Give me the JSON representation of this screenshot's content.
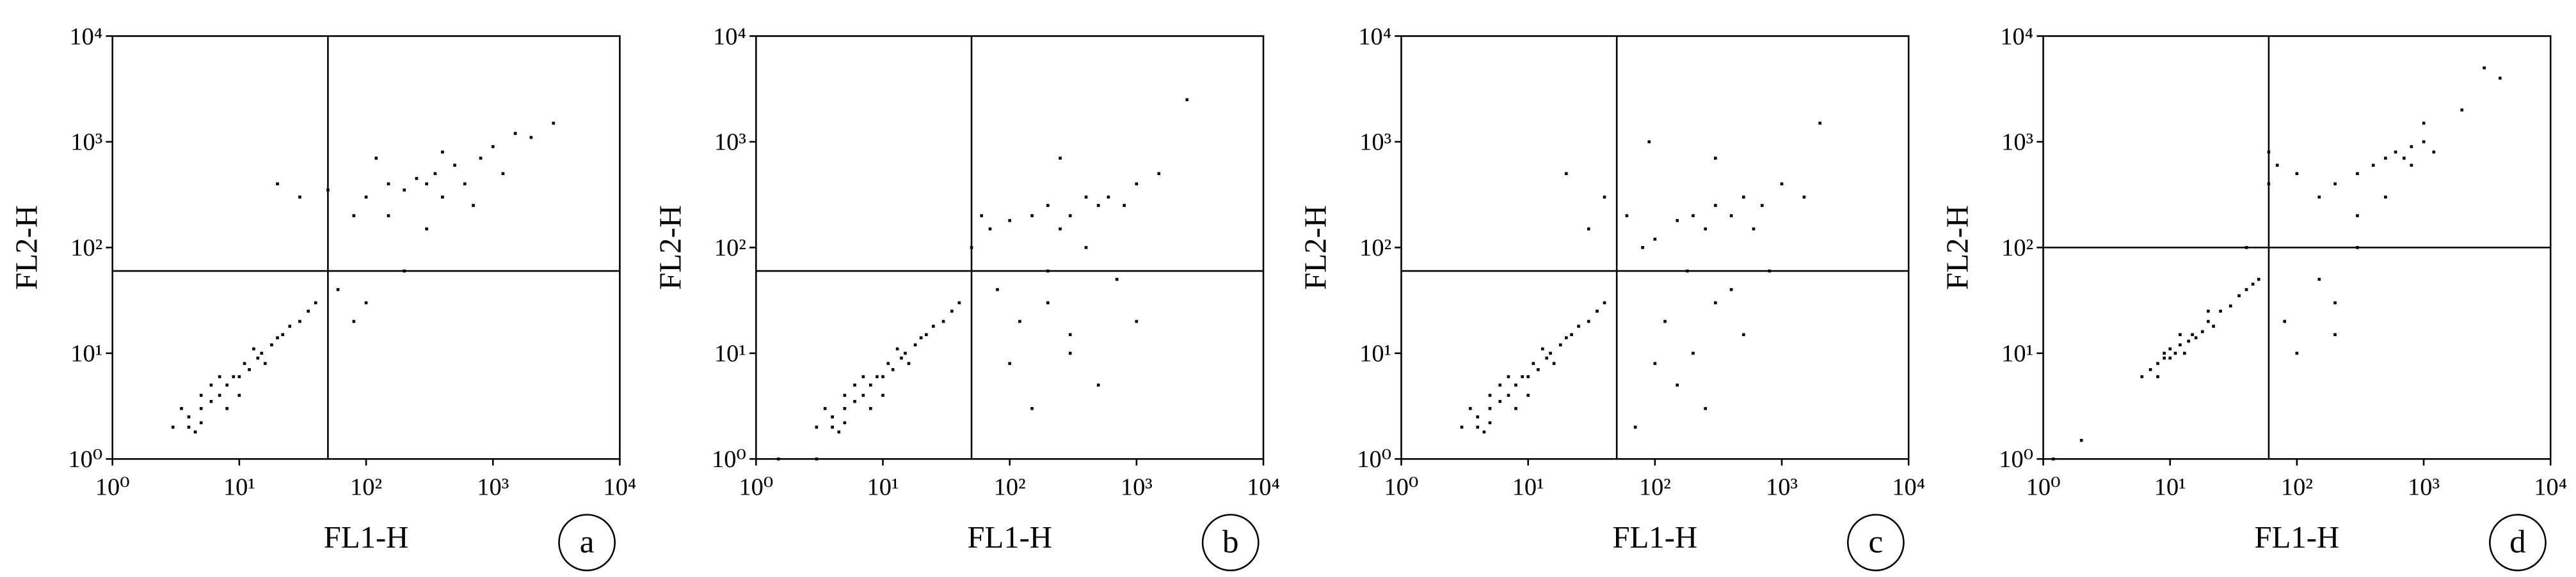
{
  "chart_data": [
    {
      "type": "scatter",
      "xlabel": "FL1-H",
      "ylabel": "FL2-H",
      "panel_label": "a",
      "color": "#000000",
      "xscale": "log",
      "yscale": "log",
      "xlim": [
        1,
        10000
      ],
      "ylim": [
        1,
        10000
      ],
      "xticks": [
        {
          "value": 1,
          "label": "10⁰"
        },
        {
          "value": 10,
          "label": "10¹"
        },
        {
          "value": 100,
          "label": "10²"
        },
        {
          "value": 1000,
          "label": "10³"
        },
        {
          "value": 10000,
          "label": "10⁴"
        }
      ],
      "yticks": [
        {
          "value": 1,
          "label": "10⁰"
        },
        {
          "value": 10,
          "label": "10¹"
        },
        {
          "value": 100,
          "label": "10²"
        },
        {
          "value": 1000,
          "label": "10³"
        },
        {
          "value": 10000,
          "label": "10⁴"
        }
      ],
      "quadrant": {
        "x": 50,
        "y": 60
      },
      "x": [
        3,
        4,
        5,
        4,
        6,
        5,
        7,
        8,
        6,
        9,
        10,
        11,
        12,
        14,
        15,
        18,
        20,
        22,
        25,
        30,
        35,
        40,
        8,
        3.5,
        5,
        10,
        13,
        16,
        7,
        4.5,
        150,
        200,
        250,
        300,
        350,
        400,
        500,
        600,
        800,
        1000,
        1500,
        2000,
        100,
        80,
        50,
        30,
        20,
        700,
        1200,
        300,
        150,
        120,
        400,
        3000,
        60,
        80,
        200,
        100
      ],
      "y": [
        2,
        2.5,
        3,
        2,
        3.5,
        4,
        4,
        5,
        5,
        6,
        6,
        8,
        7,
        9,
        10,
        12,
        14,
        15,
        18,
        20,
        25,
        30,
        3,
        3,
        2.2,
        4,
        11,
        8,
        6,
        1.8,
        400,
        350,
        450,
        400,
        500,
        300,
        600,
        400,
        700,
        900,
        1200,
        1100,
        300,
        200,
        350,
        300,
        400,
        250,
        500,
        150,
        200,
        700,
        800,
        1500,
        40,
        20,
        60,
        30
      ]
    },
    {
      "type": "scatter",
      "xlabel": "FL1-H",
      "ylabel": "FL2-H",
      "panel_label": "b",
      "color": "#000000",
      "xscale": "log",
      "yscale": "log",
      "xlim": [
        1,
        10000
      ],
      "ylim": [
        1,
        10000
      ],
      "xticks": [
        {
          "value": 1,
          "label": "10⁰"
        },
        {
          "value": 10,
          "label": "10¹"
        },
        {
          "value": 100,
          "label": "10²"
        },
        {
          "value": 1000,
          "label": "10³"
        },
        {
          "value": 10000,
          "label": "10⁴"
        }
      ],
      "yticks": [
        {
          "value": 1,
          "label": "10⁰"
        },
        {
          "value": 10,
          "label": "10¹"
        },
        {
          "value": 100,
          "label": "10²"
        },
        {
          "value": 1000,
          "label": "10³"
        },
        {
          "value": 10000,
          "label": "10⁴"
        }
      ],
      "quadrant": {
        "x": 50,
        "y": 60
      },
      "x": [
        3,
        4,
        5,
        4,
        6,
        5,
        7,
        8,
        6,
        9,
        10,
        11,
        12,
        14,
        15,
        18,
        20,
        22,
        25,
        30,
        35,
        40,
        8,
        3.5,
        5,
        10,
        13,
        16,
        7,
        4.5,
        200,
        300,
        400,
        500,
        250,
        150,
        100,
        600,
        800,
        1000,
        1500,
        70,
        60,
        50,
        120,
        300,
        200,
        500,
        100,
        150,
        300,
        700,
        1000,
        80,
        200,
        400,
        2500,
        1.5,
        3,
        250
      ],
      "y": [
        2,
        2.5,
        3,
        2,
        3.5,
        4,
        4,
        5,
        5,
        6,
        6,
        8,
        7,
        9,
        10,
        12,
        14,
        15,
        18,
        20,
        25,
        30,
        3,
        3,
        2.2,
        4,
        11,
        8,
        6,
        1.8,
        250,
        200,
        300,
        250,
        150,
        200,
        180,
        300,
        250,
        400,
        500,
        150,
        200,
        100,
        20,
        10,
        30,
        5,
        8,
        3,
        15,
        50,
        20,
        40,
        60,
        100,
        2500,
        1,
        1,
        700
      ]
    },
    {
      "type": "scatter",
      "xlabel": "FL1-H",
      "ylabel": "FL2-H",
      "panel_label": "c",
      "color": "#000000",
      "xscale": "log",
      "yscale": "log",
      "xlim": [
        1,
        10000
      ],
      "ylim": [
        1,
        10000
      ],
      "xticks": [
        {
          "value": 1,
          "label": "10⁰"
        },
        {
          "value": 10,
          "label": "10¹"
        },
        {
          "value": 100,
          "label": "10²"
        },
        {
          "value": 1000,
          "label": "10³"
        },
        {
          "value": 10000,
          "label": "10⁴"
        }
      ],
      "yticks": [
        {
          "value": 1,
          "label": "10⁰"
        },
        {
          "value": 10,
          "label": "10¹"
        },
        {
          "value": 100,
          "label": "10²"
        },
        {
          "value": 1000,
          "label": "10³"
        },
        {
          "value": 10000,
          "label": "10⁴"
        }
      ],
      "quadrant": {
        "x": 50,
        "y": 60
      },
      "x": [
        3,
        4,
        5,
        4,
        6,
        5,
        7,
        8,
        6,
        9,
        10,
        11,
        12,
        14,
        15,
        18,
        20,
        22,
        25,
        30,
        35,
        40,
        8,
        3.5,
        5,
        10,
        13,
        16,
        7,
        4.5,
        200,
        300,
        400,
        250,
        500,
        150,
        100,
        700,
        1000,
        600,
        80,
        60,
        40,
        120,
        200,
        300,
        150,
        500,
        100,
        250,
        400,
        800,
        1500,
        90,
        30,
        20,
        2000,
        300,
        180,
        70
      ],
      "y": [
        2,
        2.5,
        3,
        2,
        3.5,
        4,
        4,
        5,
        5,
        6,
        6,
        8,
        7,
        9,
        10,
        12,
        14,
        15,
        18,
        20,
        25,
        30,
        3,
        3,
        2.2,
        4,
        11,
        8,
        6,
        1.8,
        200,
        250,
        200,
        150,
        300,
        180,
        120,
        250,
        400,
        150,
        100,
        200,
        300,
        20,
        10,
        30,
        5,
        15,
        8,
        3,
        40,
        60,
        300,
        1000,
        150,
        500,
        1500,
        700,
        60,
        2
      ]
    },
    {
      "type": "scatter",
      "xlabel": "FL1-H",
      "ylabel": "FL2-H",
      "panel_label": "d",
      "color": "#000000",
      "xscale": "log",
      "yscale": "log",
      "xlim": [
        1,
        10000
      ],
      "ylim": [
        1,
        10000
      ],
      "xticks": [
        {
          "value": 1,
          "label": "10⁰"
        },
        {
          "value": 10,
          "label": "10¹"
        },
        {
          "value": 100,
          "label": "10²"
        },
        {
          "value": 1000,
          "label": "10³"
        },
        {
          "value": 10000,
          "label": "10⁴"
        }
      ],
      "yticks": [
        {
          "value": 1,
          "label": "10⁰"
        },
        {
          "value": 10,
          "label": "10¹"
        },
        {
          "value": 100,
          "label": "10²"
        },
        {
          "value": 1000,
          "label": "10³"
        },
        {
          "value": 10000,
          "label": "10⁴"
        }
      ],
      "quadrant": {
        "x": 60,
        "y": 100
      },
      "x": [
        7,
        8,
        9,
        10,
        12,
        10,
        14,
        15,
        11,
        18,
        20,
        22,
        25,
        30,
        35,
        40,
        45,
        50,
        8,
        9,
        13,
        16,
        20,
        6,
        12,
        300,
        400,
        500,
        600,
        700,
        800,
        1000,
        1200,
        200,
        150,
        100,
        70,
        60,
        300,
        500,
        800,
        1000,
        2000,
        3000,
        4000,
        150,
        200,
        300,
        80,
        100,
        40,
        60,
        200,
        1.2,
        2
      ],
      "y": [
        7,
        8,
        9,
        9,
        12,
        11,
        13,
        15,
        10,
        16,
        20,
        18,
        25,
        28,
        35,
        40,
        45,
        50,
        6,
        10,
        10,
        14,
        25,
        6,
        15,
        500,
        600,
        700,
        800,
        700,
        900,
        1000,
        800,
        400,
        300,
        500,
        600,
        400,
        200,
        300,
        600,
        1500,
        2000,
        5000,
        4000,
        50,
        30,
        100,
        20,
        10,
        100,
        800,
        15,
        1,
        1.5
      ]
    }
  ]
}
